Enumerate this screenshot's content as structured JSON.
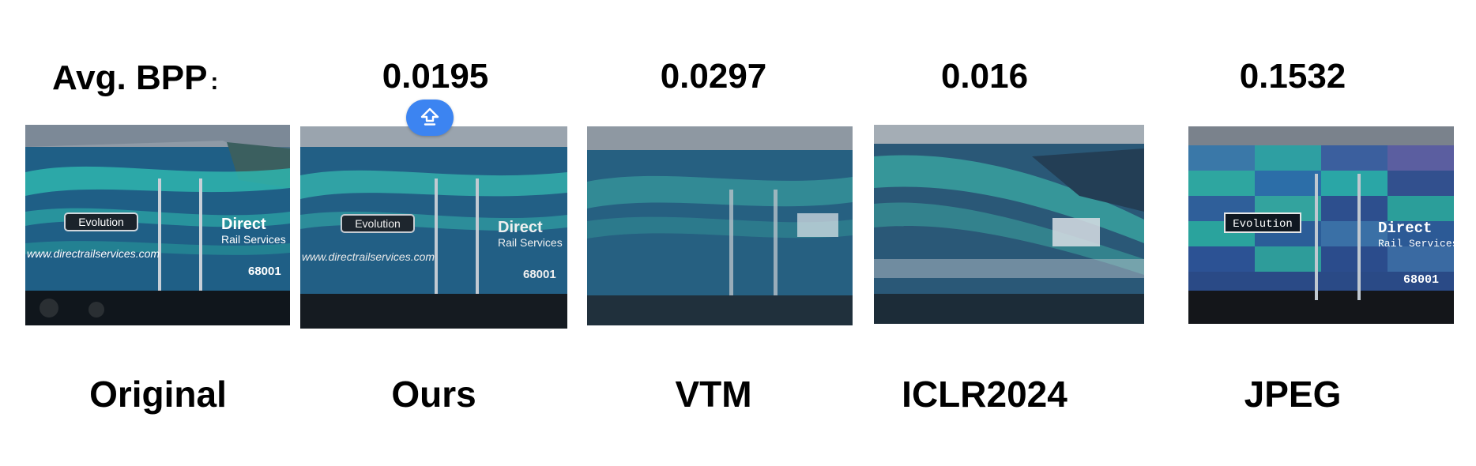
{
  "header": {
    "bpp_label": "Avg. BPP",
    "bpp_colon": ":"
  },
  "methods": [
    {
      "key": "original",
      "caption": "Original",
      "bpp": ""
    },
    {
      "key": "ours",
      "caption": "Ours",
      "bpp": "0.0195"
    },
    {
      "key": "vtm",
      "caption": "VTM",
      "bpp": "0.0297"
    },
    {
      "key": "iclr2024",
      "caption": "ICLR2024",
      "bpp": "0.016"
    },
    {
      "key": "jpeg",
      "caption": "JPEG",
      "bpp": "0.1532"
    }
  ],
  "train_text": {
    "badge": "Evolution",
    "brand_line1": "Direct",
    "brand_line2": "Rail Services",
    "website": "www.directrailservices.com",
    "number": "68001"
  },
  "overlay": {
    "icon": "upload-icon"
  },
  "colors": {
    "train_body": "#1f5f86",
    "teal": "#2fb5ae",
    "accent": "#3c84f1",
    "roof": "#8f9aa6"
  }
}
